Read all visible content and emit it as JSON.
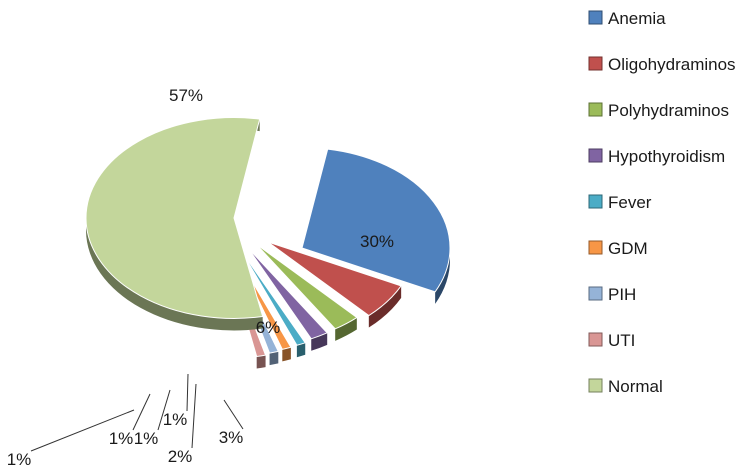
{
  "chart_data": {
    "type": "pie",
    "style": "3d-exploded",
    "legend_position": "right",
    "categories": [
      "Anemia",
      "Oligohydraminos",
      "Polyhydraminos",
      "Hypothyroidism",
      "Fever",
      "GDM",
      "PIH",
      "UTI",
      "Normal"
    ],
    "values": [
      30,
      6,
      3,
      2,
      1,
      1,
      1,
      1,
      57
    ],
    "labels": [
      "30%",
      "6%",
      "3%",
      "2%",
      "1%",
      "1%",
      "1%",
      "1%",
      "57%"
    ],
    "colors": [
      "#4f81bd",
      "#c0504d",
      "#9bbb59",
      "#8064a2",
      "#4bacc6",
      "#f79646",
      "#95b3d7",
      "#d99694",
      "#c3d69b"
    ]
  }
}
